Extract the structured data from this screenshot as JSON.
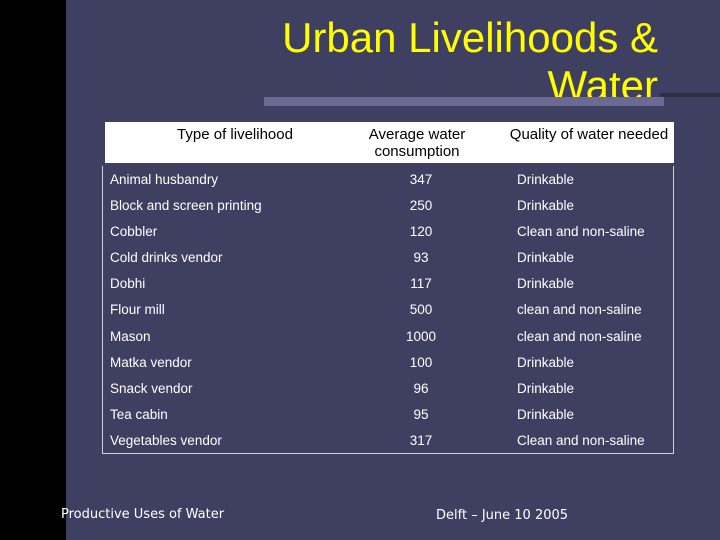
{
  "slide": {
    "title_line1": "Urban Livelihoods &",
    "title_line2": "Water",
    "footer_left": "Productive Uses of Water",
    "footer_right": "Delft – June 10 2005"
  },
  "table": {
    "headers": [
      "Type of livelihood",
      "Average water consumption",
      "Quality of water needed"
    ],
    "rows": [
      [
        "Animal husbandry",
        "347",
        "Drinkable"
      ],
      [
        "Block and screen printing",
        "250",
        "Drinkable"
      ],
      [
        "Cobbler",
        "120",
        "Clean and non-saline"
      ],
      [
        "Cold drinks vendor",
        "93",
        "Drinkable"
      ],
      [
        "Dobhi",
        "117",
        "Drinkable"
      ],
      [
        "Flour mill",
        "500",
        "clean and non-saline"
      ],
      [
        "Mason",
        "1000",
        "clean and non-saline"
      ],
      [
        "Matka vendor",
        "100",
        "Drinkable"
      ],
      [
        "Snack vendor",
        "96",
        "Drinkable"
      ],
      [
        "Tea cabin",
        "95",
        "Drinkable"
      ],
      [
        "Vegetables vendor",
        "317",
        "Clean and non-saline"
      ]
    ]
  }
}
